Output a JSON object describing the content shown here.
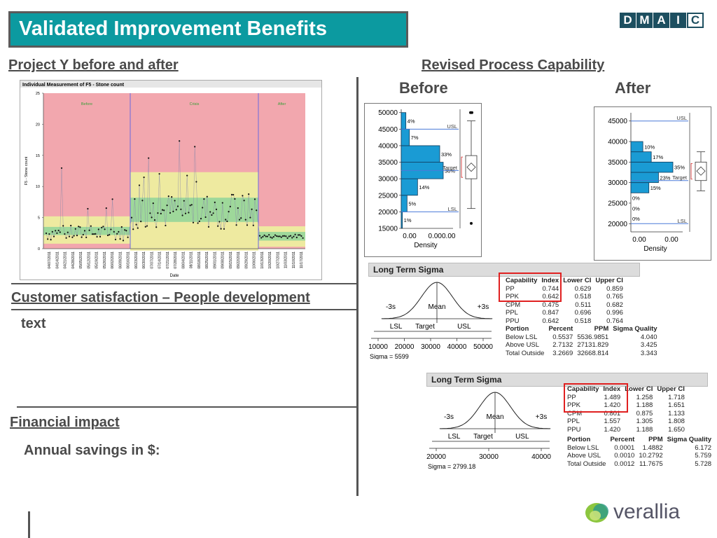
{
  "header": {
    "title": "Validated Improvement Benefits",
    "dmaic": [
      "D",
      "M",
      "A",
      "I",
      "C"
    ],
    "active_phase": "C"
  },
  "left": {
    "project_heading": "Project Y   before and after",
    "customer_heading": "Customer satisfaction – People development",
    "customer_text": "text",
    "financial_heading": "Financial impact",
    "financial_text": "Annual savings in $:"
  },
  "right": {
    "capability_heading": "Revised Process Capability",
    "before_label": "Before",
    "after_label": "After"
  },
  "control_chart": {
    "title": "Individual Measurement of F5 - Stone count",
    "ylabel": "F5 - Stone count",
    "xlabel": "Date",
    "y_ticks": [
      "0",
      "5",
      "10",
      "15",
      "20",
      "25"
    ],
    "phases": [
      "Before",
      "Crisis",
      "After"
    ],
    "dates": [
      "04/07/2011",
      "04/14/2011",
      "04/21/2011",
      "04/28/2011",
      "05/05/2011",
      "05/12/2011",
      "05/19/2011",
      "05/26/2011",
      "06/02/2011",
      "06/09/2011",
      "06/16/2011",
      "06/23/2011",
      "06/30/2011",
      "07/07/2011",
      "07/14/2011",
      "07/21/2011",
      "07/28/2011",
      "08/04/2011",
      "08/11/2011",
      "08/18/2011",
      "08/25/2011",
      "09/01/2011",
      "09/08/2011",
      "09/15/2011",
      "09/22/2011",
      "09/29/2011",
      "10/06/2011",
      "10/13/2011",
      "10/20/2011",
      "10/27/2011",
      "11/03/2011",
      "11/10/2011",
      "11/17/2011"
    ]
  },
  "chart_data": [
    {
      "type": "histogram",
      "name": "before",
      "y_ticks": [
        15000,
        20000,
        25000,
        30000,
        35000,
        40000,
        45000,
        50000
      ],
      "bins": [
        {
          "from": 15000,
          "to": 20000,
          "percent": "1%",
          "value": 1
        },
        {
          "from": 20000,
          "to": 25000,
          "percent": "5%",
          "value": 5
        },
        {
          "from": 25000,
          "to": 30000,
          "percent": "14%",
          "value": 14
        },
        {
          "from": 30000,
          "to": 35000,
          "percent": "36%",
          "value": 36
        },
        {
          "from": 35000,
          "to": 40000,
          "percent": "33%",
          "value": 33
        },
        {
          "from": 40000,
          "to": 45000,
          "percent": "7%",
          "value": 7
        },
        {
          "from": 45000,
          "to": 50000,
          "percent": "4%",
          "value": 4
        }
      ],
      "usl": 45000,
      "lsl": 20000,
      "target": 32500,
      "xlabel": "Density",
      "x_ticks": [
        "0.00",
        "0.000.00"
      ]
    },
    {
      "type": "histogram",
      "name": "after",
      "y_ticks": [
        20000,
        25000,
        30000,
        35000,
        40000,
        45000
      ],
      "bins": [
        {
          "from": 20000,
          "to": 22500,
          "percent": "0%",
          "value": 0
        },
        {
          "from": 22500,
          "to": 25000,
          "percent": "0%",
          "value": 0
        },
        {
          "from": 25000,
          "to": 27500,
          "percent": "0%",
          "value": 0
        },
        {
          "from": 27500,
          "to": 30000,
          "percent": "15%",
          "value": 15
        },
        {
          "from": 30000,
          "to": 32500,
          "percent": "23%",
          "value": 23
        },
        {
          "from": 32500,
          "to": 35000,
          "percent": "35%",
          "value": 35
        },
        {
          "from": 35000,
          "to": 37500,
          "percent": "17%",
          "value": 17
        },
        {
          "from": 37500,
          "to": 40000,
          "percent": "10%",
          "value": 10
        }
      ],
      "usl": 45000,
      "lsl": 20000,
      "target": 30500,
      "xlabel": "Density",
      "x_ticks": [
        "0.00",
        "0.00"
      ]
    }
  ],
  "sigma_before": {
    "header": "Long Term Sigma",
    "curve_labels": {
      "left": "-3s",
      "mean": "Mean",
      "right": "+3s",
      "lsl": "LSL",
      "target": "Target",
      "usl": "USL"
    },
    "x_ticks": [
      "10000",
      "20000",
      "30000",
      "40000",
      "50000"
    ],
    "sigma": "Sigma = 5599",
    "cap_headers": [
      "Capability",
      "Index",
      "Lower CI",
      "Upper CI"
    ],
    "cap_rows": [
      [
        "PP",
        "0.744",
        "0.629",
        "0.859"
      ],
      [
        "PPK",
        "0.642",
        "0.518",
        "0.765"
      ],
      [
        "CPM",
        "0.475",
        "0.511",
        "0.682"
      ],
      [
        "PPL",
        "0.847",
        "0.696",
        "0.996"
      ],
      [
        "PPU",
        "0.642",
        "0.518",
        "0.764"
      ]
    ],
    "portion_headers": [
      "Portion",
      "Percent",
      "PPM",
      "Sigma Quality"
    ],
    "portion_rows": [
      [
        "Below LSL",
        "0.5537",
        "5536.9851",
        "4.040"
      ],
      [
        "Above USL",
        "2.7132",
        "27131.829",
        "3.425"
      ],
      [
        "Total Outside",
        "3.2669",
        "32668.814",
        "3.343"
      ]
    ]
  },
  "sigma_after": {
    "header": "Long Term Sigma",
    "curve_labels": {
      "left": "-3s",
      "mean": "Mean",
      "right": "+3s",
      "lsl": "LSL",
      "target": "Target",
      "usl": "USL"
    },
    "x_ticks": [
      "20000",
      "30000",
      "40000"
    ],
    "sigma": "Sigma = 2799.18",
    "cap_headers": [
      "Capability",
      "Index",
      "Lower CI",
      "Upper CI"
    ],
    "cap_rows": [
      [
        "PP",
        "1.489",
        "1.258",
        "1.718"
      ],
      [
        "PPK",
        "1.420",
        "1.188",
        "1.651"
      ],
      [
        "CPM",
        "0.801",
        "0.875",
        "1.133"
      ],
      [
        "PPL",
        "1.557",
        "1.305",
        "1.808"
      ],
      [
        "PPU",
        "1.420",
        "1.188",
        "1.650"
      ]
    ],
    "portion_headers": [
      "Portion",
      "Percent",
      "PPM",
      "Sigma Quality"
    ],
    "portion_rows": [
      [
        "Below LSL",
        "0.0001",
        "1.4882",
        "6.172"
      ],
      [
        "Above USL",
        "0.0010",
        "10.2792",
        "5.759"
      ],
      [
        "Total Outside",
        "0.0012",
        "11.7675",
        "5.728"
      ]
    ]
  },
  "logo": {
    "text": "verallia"
  }
}
